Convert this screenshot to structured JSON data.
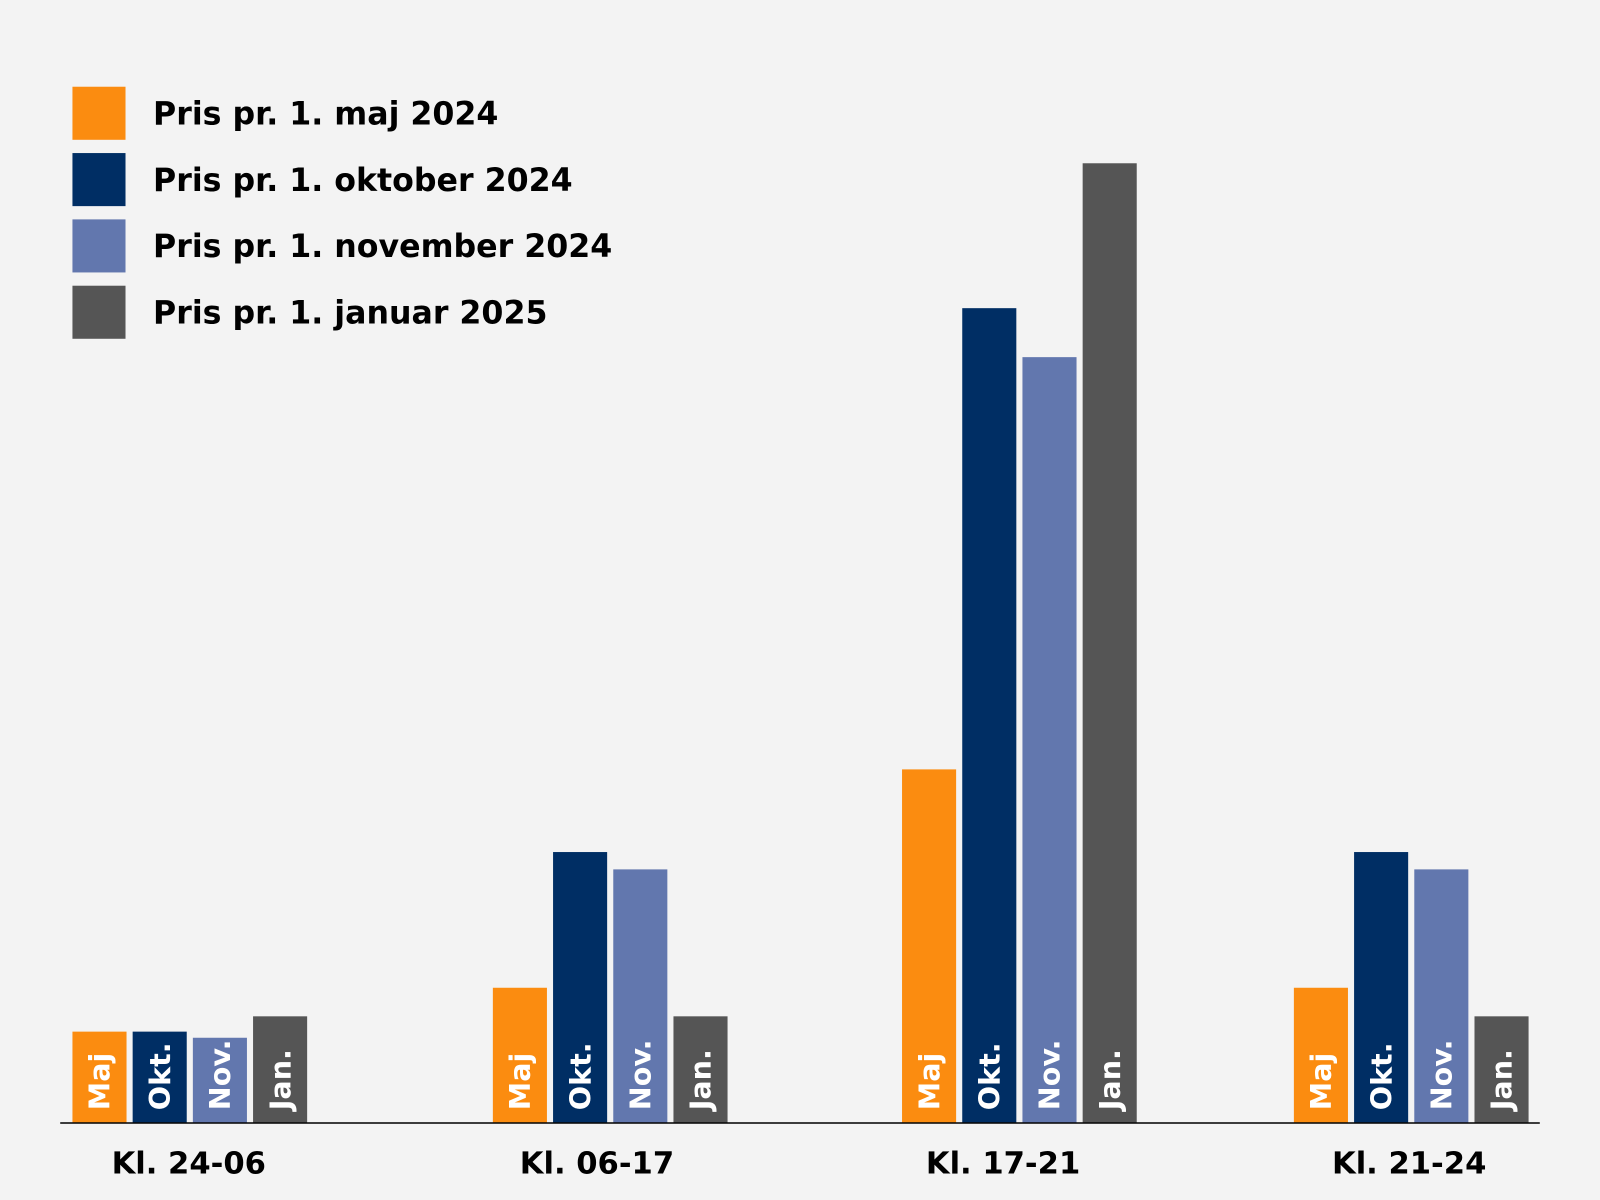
{
  "chart_data": {
    "type": "bar",
    "title": "",
    "xlabel": "",
    "ylabel": "",
    "ylim": [
      0,
      100
    ],
    "grid": false,
    "legend_position": "top-left",
    "categories": [
      "Kl. 24-06",
      "Kl. 06-17",
      "Kl. 17-21",
      "Kl. 21-24"
    ],
    "series": [
      {
        "name": "Pris pr. 1. maj 2024",
        "short": "Maj",
        "color": "#fb8c10",
        "values": [
          8.9,
          13.2,
          34.6,
          13.2
        ]
      },
      {
        "name": "Pris pr. 1. oktober 2024",
        "short": "Okt.",
        "color": "#002e64",
        "values": [
          8.9,
          26.5,
          79.8,
          26.5
        ]
      },
      {
        "name": "Pris pr. 1. november 2024",
        "short": "Nov.",
        "color": "#6277ae",
        "values": [
          8.3,
          24.8,
          75.0,
          24.8
        ]
      },
      {
        "name": "Pris pr. 1. januar 2025",
        "short": "Jan.",
        "color": "#555555",
        "values": [
          10.4,
          10.4,
          94.0,
          10.4
        ]
      }
    ]
  }
}
